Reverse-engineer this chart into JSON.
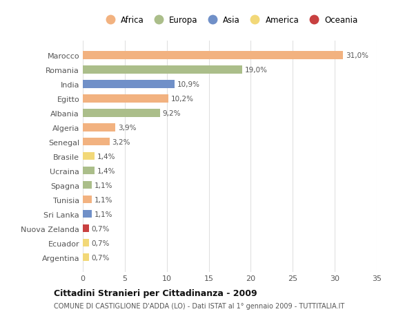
{
  "countries": [
    "Marocco",
    "Romania",
    "India",
    "Egitto",
    "Albania",
    "Algeria",
    "Senegal",
    "Brasile",
    "Ucraina",
    "Spagna",
    "Tunisia",
    "Sri Lanka",
    "Nuova Zelanda",
    "Ecuador",
    "Argentina"
  ],
  "values": [
    31.0,
    19.0,
    10.9,
    10.2,
    9.2,
    3.9,
    3.2,
    1.4,
    1.4,
    1.1,
    1.1,
    1.1,
    0.7,
    0.7,
    0.7
  ],
  "labels": [
    "31,0%",
    "19,0%",
    "10,9%",
    "10,2%",
    "9,2%",
    "3,9%",
    "3,2%",
    "1,4%",
    "1,4%",
    "1,1%",
    "1,1%",
    "1,1%",
    "0,7%",
    "0,7%",
    "0,7%"
  ],
  "continents": [
    "Africa",
    "Europa",
    "Asia",
    "Africa",
    "Europa",
    "Africa",
    "Africa",
    "America",
    "Europa",
    "Europa",
    "Africa",
    "Asia",
    "Oceania",
    "America",
    "America"
  ],
  "continent_colors": {
    "Africa": "#F2B280",
    "Europa": "#ABBE8A",
    "Asia": "#7090C8",
    "America": "#F2D878",
    "Oceania": "#C84040"
  },
  "legend_order": [
    "Africa",
    "Europa",
    "Asia",
    "America",
    "Oceania"
  ],
  "title": "Cittadini Stranieri per Cittadinanza - 2009",
  "subtitle": "COMUNE DI CASTIGLIONE D'ADDA (LO) - Dati ISTAT al 1° gennaio 2009 - TUTTITALIA.IT",
  "xlim": [
    0,
    35
  ],
  "xticks": [
    0,
    5,
    10,
    15,
    20,
    25,
    30,
    35
  ],
  "background_color": "#ffffff",
  "grid_color": "#e0e0e0"
}
